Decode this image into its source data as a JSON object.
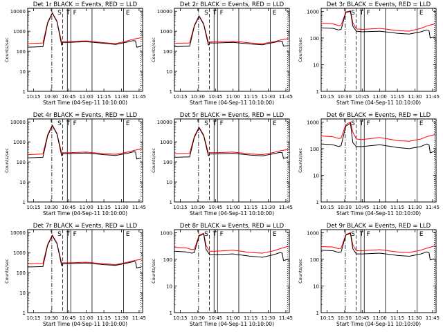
{
  "chart_data": [
    {
      "type": "line",
      "title": "Det 1r BLACK = Events, RED = LLD",
      "xlabel": "Start Time (04-Sep-11 10:10:00)",
      "ylabel": "Counts/sec",
      "yscale": "log",
      "ylim": [
        1,
        14000
      ],
      "xlim": [
        "10:10",
        "11:48"
      ],
      "x_ticks": [
        "10:15",
        "10:30",
        "10:45",
        "11:00",
        "11:15",
        "11:30",
        "11:45"
      ],
      "y_ticks": [
        "1",
        "10",
        "100",
        "1000",
        "10000"
      ],
      "flags": [
        "S",
        "T",
        "F",
        "E"
      ],
      "series": [
        {
          "name": "Events",
          "color": "#000000",
          "x": [
            "10:10",
            "10:23",
            "10:27",
            "10:31",
            "10:35",
            "10:39",
            "10:40",
            "10:45",
            "11:00",
            "11:15",
            "11:25",
            "11:35",
            "11:40",
            "11:42",
            "11:43",
            "11:47"
          ],
          "y": [
            160,
            170,
            2500,
            8000,
            3000,
            200,
            280,
            280,
            300,
            250,
            220,
            290,
            340,
            330,
            160,
            180
          ]
        },
        {
          "name": "LLD",
          "color": "#ff0000",
          "x": [
            "10:10",
            "10:23",
            "10:27",
            "10:31",
            "10:35",
            "10:39",
            "10:40",
            "10:45",
            "11:00",
            "11:15",
            "11:25",
            "11:35",
            "11:40",
            "11:47"
          ],
          "y": [
            240,
            260,
            2800,
            8500,
            3200,
            280,
            300,
            300,
            330,
            270,
            240,
            330,
            400,
            480
          ]
        }
      ]
    },
    {
      "type": "line",
      "title": "Det 2r BLACK = Events, RED = LLD",
      "xlabel": "Start Time (04-Sep-11 10:10:00)",
      "ylabel": "Counts/sec",
      "yscale": "log",
      "ylim": [
        1,
        14000
      ],
      "xlim": [
        "10:10",
        "11:48"
      ],
      "x_ticks": [
        "10:15",
        "10:30",
        "10:45",
        "11:00",
        "11:15",
        "11:30",
        "11:45"
      ],
      "y_ticks": [
        "1",
        "10",
        "100",
        "1000",
        "10000"
      ],
      "flags": [
        "S",
        "T",
        "F",
        "E"
      ],
      "series": [
        {
          "name": "Events",
          "color": "#000000",
          "x": [
            "10:10",
            "10:23",
            "10:27",
            "10:31",
            "10:35",
            "10:39",
            "10:40",
            "10:45",
            "11:00",
            "11:15",
            "11:25",
            "11:35",
            "11:40",
            "11:42",
            "11:43",
            "11:47"
          ],
          "y": [
            170,
            180,
            1800,
            5500,
            2200,
            200,
            260,
            260,
            280,
            230,
            210,
            280,
            320,
            310,
            180,
            190
          ]
        },
        {
          "name": "LLD",
          "color": "#ff0000",
          "x": [
            "10:10",
            "10:23",
            "10:27",
            "10:31",
            "10:35",
            "10:39",
            "10:40",
            "10:45",
            "11:00",
            "11:15",
            "11:25",
            "11:35",
            "11:40",
            "11:47"
          ],
          "y": [
            250,
            260,
            2000,
            6000,
            2400,
            270,
            290,
            300,
            320,
            260,
            240,
            300,
            360,
            430
          ]
        }
      ]
    },
    {
      "type": "line",
      "title": "Det 3r BLACK = Events, RED = LLD",
      "xlabel": "Start Time (04-Sep-11 10:10:00)",
      "ylabel": "Counts/sec",
      "yscale": "log",
      "ylim": [
        1,
        1300
      ],
      "xlim": [
        "10:10",
        "11:48"
      ],
      "x_ticks": [
        "10:15",
        "10:30",
        "10:45",
        "11:00",
        "11:15",
        "11:30",
        "11:45"
      ],
      "y_ticks": [
        "1",
        "10",
        "100",
        "1000"
      ],
      "flags": [
        "S",
        "T",
        "F",
        "E"
      ],
      "series": [
        {
          "name": "Events",
          "color": "#000000",
          "x": [
            "10:10",
            "10:20",
            "10:25",
            "10:27",
            "10:31",
            "10:35",
            "10:37",
            "10:40",
            "10:45",
            "11:00",
            "11:15",
            "11:25",
            "11:35",
            "11:40",
            "11:42",
            "11:43",
            "11:47"
          ],
          "y": [
            240,
            230,
            200,
            210,
            900,
            1000,
            280,
            180,
            170,
            180,
            150,
            140,
            170,
            200,
            190,
            100,
            110
          ]
        },
        {
          "name": "LLD",
          "color": "#ff0000",
          "x": [
            "10:10",
            "10:20",
            "10:25",
            "10:27",
            "10:31",
            "10:35",
            "10:37",
            "10:40",
            "10:45",
            "11:00",
            "11:15",
            "11:25",
            "11:35",
            "11:40",
            "11:47"
          ],
          "y": [
            360,
            340,
            290,
            300,
            950,
            1050,
            380,
            220,
            210,
            230,
            190,
            180,
            230,
            280,
            340
          ]
        }
      ]
    },
    {
      "type": "line",
      "title": "Det 4r BLACK = Events, RED = LLD",
      "xlabel": "Start Time (04-Sep-11 10:10:00)",
      "ylabel": "Counts/sec",
      "yscale": "log",
      "ylim": [
        1,
        14000
      ],
      "xlim": [
        "10:10",
        "11:48"
      ],
      "x_ticks": [
        "10:15",
        "10:30",
        "10:45",
        "11:00",
        "11:15",
        "11:30",
        "11:45"
      ],
      "y_ticks": [
        "1",
        "10",
        "100",
        "1000",
        "10000"
      ],
      "flags": [
        "S",
        "T",
        "F",
        "E"
      ],
      "series": [
        {
          "name": "Events",
          "color": "#000000",
          "x": [
            "10:10",
            "10:23",
            "10:27",
            "10:31",
            "10:35",
            "10:39",
            "10:40",
            "10:45",
            "11:00",
            "11:15",
            "11:25",
            "11:35",
            "11:40",
            "11:42",
            "11:43",
            "11:47"
          ],
          "y": [
            160,
            170,
            2000,
            6500,
            2500,
            200,
            260,
            260,
            280,
            230,
            210,
            270,
            320,
            310,
            140,
            160
          ]
        },
        {
          "name": "LLD",
          "color": "#ff0000",
          "x": [
            "10:10",
            "10:23",
            "10:27",
            "10:31",
            "10:35",
            "10:39",
            "10:40",
            "10:45",
            "11:00",
            "11:15",
            "11:25",
            "11:35",
            "11:40",
            "11:47"
          ],
          "y": [
            230,
            250,
            2300,
            7000,
            2700,
            270,
            290,
            290,
            310,
            260,
            240,
            310,
            370,
            450
          ]
        }
      ]
    },
    {
      "type": "line",
      "title": "Det 5r BLACK = Events, RED = LLD",
      "xlabel": "Start Time (04-Sep-11 10:10:00)",
      "ylabel": "Counts/sec",
      "yscale": "log",
      "ylim": [
        1,
        14000
      ],
      "xlim": [
        "10:10",
        "11:48"
      ],
      "x_ticks": [
        "10:15",
        "10:30",
        "10:45",
        "11:00",
        "11:15",
        "11:30",
        "11:45"
      ],
      "y_ticks": [
        "1",
        "10",
        "100",
        "1000",
        "10000"
      ],
      "flags": [
        "S",
        "T",
        "F",
        "E"
      ],
      "series": [
        {
          "name": "Events",
          "color": "#000000",
          "x": [
            "10:10",
            "10:23",
            "10:27",
            "10:31",
            "10:35",
            "10:39",
            "10:40",
            "10:45",
            "11:00",
            "11:15",
            "11:25",
            "11:35",
            "11:40",
            "11:42",
            "11:43",
            "11:47"
          ],
          "y": [
            170,
            180,
            1700,
            5000,
            2000,
            200,
            250,
            250,
            270,
            220,
            200,
            260,
            300,
            290,
            150,
            170
          ]
        },
        {
          "name": "LLD",
          "color": "#ff0000",
          "x": [
            "10:10",
            "10:23",
            "10:27",
            "10:31",
            "10:35",
            "10:39",
            "10:40",
            "10:45",
            "11:00",
            "11:15",
            "11:25",
            "11:35",
            "11:40",
            "11:47"
          ],
          "y": [
            260,
            270,
            1900,
            5500,
            2200,
            270,
            290,
            290,
            310,
            250,
            230,
            300,
            360,
            420
          ]
        }
      ]
    },
    {
      "type": "line",
      "title": "Det 6r BLACK = Events, RED = LLD",
      "xlabel": "Start Time (04-Sep-11 10:10:00)",
      "ylabel": "Counts/sec",
      "yscale": "log",
      "ylim": [
        1,
        1300
      ],
      "xlim": [
        "10:10",
        "11:48"
      ],
      "x_ticks": [
        "10:15",
        "10:30",
        "10:45",
        "11:00",
        "11:15",
        "11:30",
        "11:45"
      ],
      "y_ticks": [
        "1",
        "10",
        "100",
        "1000"
      ],
      "flags": [
        "S",
        "T",
        "F",
        "E"
      ],
      "series": [
        {
          "name": "Events",
          "color": "#000000",
          "x": [
            "10:10",
            "10:20",
            "10:25",
            "10:27",
            "10:31",
            "10:35",
            "10:37",
            "10:40",
            "10:45",
            "11:00",
            "11:15",
            "11:25",
            "11:35",
            "11:40",
            "11:42",
            "11:43",
            "11:47"
          ],
          "y": [
            150,
            140,
            120,
            130,
            700,
            900,
            170,
            120,
            120,
            140,
            110,
            100,
            120,
            150,
            140,
            70,
            80
          ]
        },
        {
          "name": "LLD",
          "color": "#ff0000",
          "x": [
            "10:10",
            "10:20",
            "10:25",
            "10:27",
            "10:31",
            "10:35",
            "10:37",
            "10:40",
            "10:45",
            "11:00",
            "11:15",
            "11:25",
            "11:35",
            "11:40",
            "11:47"
          ],
          "y": [
            300,
            280,
            240,
            250,
            800,
            1000,
            420,
            230,
            220,
            260,
            200,
            190,
            230,
            280,
            340
          ]
        }
      ]
    },
    {
      "type": "line",
      "title": "Det 7r BLACK = Events, RED = LLD",
      "xlabel": "Start Time (04-Sep-11 10:10:00)",
      "ylabel": "Counts/sec",
      "yscale": "log",
      "ylim": [
        1,
        14000
      ],
      "xlim": [
        "10:10",
        "11:48"
      ],
      "x_ticks": [
        "10:15",
        "10:30",
        "10:45",
        "11:00",
        "11:15",
        "11:30",
        "11:45"
      ],
      "y_ticks": [
        "1",
        "10",
        "100",
        "1000",
        "10000"
      ],
      "flags": [
        "S",
        "T",
        "F",
        "E"
      ],
      "series": [
        {
          "name": "Events",
          "color": "#000000",
          "x": [
            "10:10",
            "10:23",
            "10:27",
            "10:31",
            "10:35",
            "10:39",
            "10:40",
            "10:45",
            "11:00",
            "11:15",
            "11:25",
            "11:35",
            "11:40",
            "11:42",
            "11:43",
            "11:47"
          ],
          "y": [
            190,
            200,
            2300,
            7000,
            2800,
            220,
            280,
            280,
            300,
            250,
            230,
            300,
            350,
            340,
            170,
            190
          ]
        },
        {
          "name": "LLD",
          "color": "#ff0000",
          "x": [
            "10:10",
            "10:23",
            "10:27",
            "10:31",
            "10:35",
            "10:39",
            "10:40",
            "10:45",
            "11:00",
            "11:15",
            "11:25",
            "11:35",
            "11:40",
            "11:47"
          ],
          "y": [
            280,
            290,
            2600,
            7500,
            3000,
            290,
            310,
            310,
            330,
            280,
            250,
            330,
            390,
            470
          ]
        }
      ]
    },
    {
      "type": "line",
      "title": "Det 8r BLACK = Events, RED = LLD",
      "xlabel": "Start Time (04-Sep-11 10:10:00)",
      "ylabel": "Counts/sec",
      "yscale": "log",
      "ylim": [
        1,
        1300
      ],
      "xlim": [
        "10:10",
        "11:48"
      ],
      "x_ticks": [
        "10:15",
        "10:30",
        "10:45",
        "11:00",
        "11:15",
        "11:30",
        "11:45"
      ],
      "y_ticks": [
        "1",
        "10",
        "100",
        "1000"
      ],
      "flags": [
        "S",
        "T",
        "F",
        "E"
      ],
      "series": [
        {
          "name": "Events",
          "color": "#000000",
          "x": [
            "10:10",
            "10:20",
            "10:25",
            "10:27",
            "10:31",
            "10:35",
            "10:37",
            "10:40",
            "10:45",
            "11:00",
            "11:15",
            "11:25",
            "11:35",
            "11:40",
            "11:42",
            "11:43",
            "11:47"
          ],
          "y": [
            200,
            190,
            170,
            180,
            750,
            900,
            240,
            150,
            150,
            160,
            130,
            120,
            150,
            180,
            170,
            90,
            100
          ]
        },
        {
          "name": "LLD",
          "color": "#ff0000",
          "x": [
            "10:10",
            "10:20",
            "10:25",
            "10:27",
            "10:31",
            "10:35",
            "10:37",
            "10:40",
            "10:45",
            "11:00",
            "11:15",
            "11:25",
            "11:35",
            "11:40",
            "11:47"
          ],
          "y": [
            280,
            270,
            230,
            240,
            800,
            950,
            330,
            200,
            200,
            220,
            180,
            170,
            210,
            250,
            310
          ]
        }
      ]
    },
    {
      "type": "line",
      "title": "Det 9r BLACK = Events, RED = LLD",
      "xlabel": "Start Time (04-Sep-11 10:10:00)",
      "ylabel": "Counts/sec",
      "yscale": "log",
      "ylim": [
        1,
        1300
      ],
      "xlim": [
        "10:10",
        "11:48"
      ],
      "x_ticks": [
        "10:15",
        "10:30",
        "10:45",
        "11:00",
        "11:15",
        "11:30",
        "11:45"
      ],
      "y_ticks": [
        "1",
        "10",
        "100",
        "1000"
      ],
      "flags": [
        "S",
        "T",
        "F",
        "E"
      ],
      "series": [
        {
          "name": "Events",
          "color": "#000000",
          "x": [
            "10:10",
            "10:20",
            "10:25",
            "10:27",
            "10:31",
            "10:35",
            "10:37",
            "10:40",
            "10:45",
            "11:00",
            "11:15",
            "11:25",
            "11:35",
            "11:40",
            "11:42",
            "11:43",
            "11:47"
          ],
          "y": [
            220,
            210,
            180,
            190,
            800,
            950,
            250,
            160,
            160,
            170,
            140,
            130,
            160,
            190,
            180,
            95,
            105
          ]
        },
        {
          "name": "LLD",
          "color": "#ff0000",
          "x": [
            "10:10",
            "10:20",
            "10:25",
            "10:27",
            "10:31",
            "10:35",
            "10:37",
            "10:40",
            "10:45",
            "11:00",
            "11:15",
            "11:25",
            "11:35",
            "11:40",
            "11:47"
          ],
          "y": [
            300,
            290,
            250,
            260,
            850,
            1000,
            350,
            210,
            210,
            230,
            190,
            180,
            220,
            260,
            320
          ]
        }
      ]
    }
  ]
}
